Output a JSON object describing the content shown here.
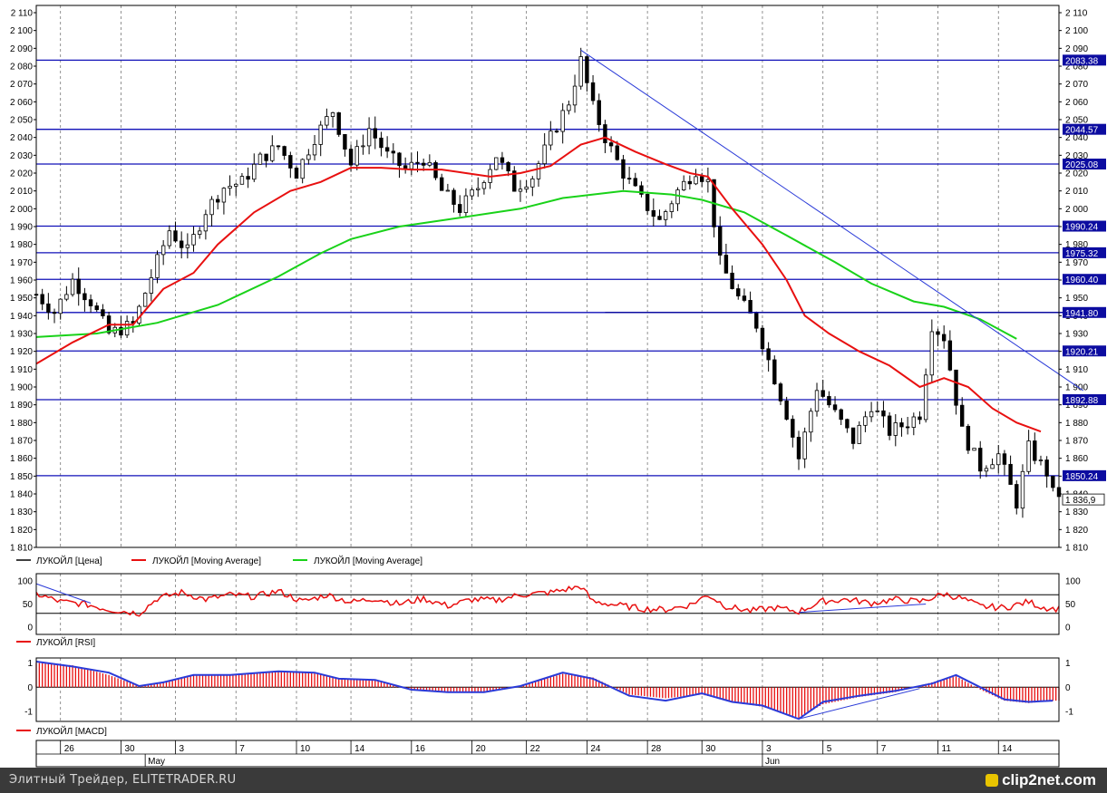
{
  "chart_data": [
    {
      "type": "candlestick",
      "series": [
        {
          "name": "ЛУКОЙЛ [Цена]",
          "color": "#000000"
        },
        {
          "name": "ЛУКОЙЛ [Moving Average]",
          "color": "#e81010"
        },
        {
          "name": "ЛУКОЙЛ [Moving Average]",
          "color": "#19d219"
        }
      ],
      "ylim": [
        1810,
        2110
      ],
      "y_ticks": [
        "2 110",
        "2 100",
        "2 090",
        "2 080",
        "2 070",
        "2 060",
        "2 050",
        "2 040",
        "2 030",
        "2 020",
        "2 010",
        "2 000",
        "1 990",
        "1 980",
        "1 970",
        "1 960",
        "1 950",
        "1 940",
        "1 930",
        "1 920",
        "1 910",
        "1 900",
        "1 890",
        "1 880",
        "1 870",
        "1 860",
        "1 850",
        "1 840",
        "1 830",
        "1 820",
        "1 810"
      ],
      "levels": [
        {
          "value": 2083.38,
          "label": "2083.38"
        },
        {
          "value": 2044.57,
          "label": "2044.57"
        },
        {
          "value": 2025.08,
          "label": "2025.08"
        },
        {
          "value": 1990.24,
          "label": "1990.24"
        },
        {
          "value": 1975.32,
          "label": "1975.32"
        },
        {
          "value": 1960.4,
          "label": "1960.40"
        },
        {
          "value": 1941.8,
          "label": "1941.80"
        },
        {
          "value": 1920.21,
          "label": "1920.21"
        },
        {
          "value": 1892.88,
          "label": "1892.88"
        },
        {
          "value": 1850.24,
          "label": "1850.24"
        }
      ],
      "last_price": {
        "value": 1836.9,
        "label": "1 836,9"
      },
      "price_path": [
        [
          0,
          1952
        ],
        [
          3,
          1942
        ],
        [
          6,
          1960
        ],
        [
          9,
          1948
        ],
        [
          12,
          1930
        ],
        [
          16,
          1935
        ],
        [
          19,
          1962
        ],
        [
          22,
          1988
        ],
        [
          25,
          1976
        ],
        [
          28,
          1999
        ],
        [
          31,
          2012
        ],
        [
          34,
          2015
        ],
        [
          37,
          2028
        ],
        [
          40,
          2035
        ],
        [
          43,
          2020
        ],
        [
          46,
          2040
        ],
        [
          49,
          2055
        ],
        [
          52,
          2025
        ],
        [
          55,
          2045
        ],
        [
          58,
          2030
        ],
        [
          61,
          2022
        ],
        [
          64,
          2028
        ],
        [
          67,
          2010
        ],
        [
          70,
          2000
        ],
        [
          73,
          2012
        ],
        [
          76,
          2030
        ],
        [
          79,
          2012
        ],
        [
          82,
          2018
        ],
        [
          85,
          2040
        ],
        [
          88,
          2060
        ],
        [
          90,
          2083
        ],
        [
          92,
          2057
        ],
        [
          94,
          2040
        ],
        [
          97,
          2020
        ],
        [
          100,
          2005
        ],
        [
          103,
          1993
        ],
        [
          106,
          2010
        ],
        [
          109,
          2022
        ],
        [
          111,
          2015
        ],
        [
          113,
          1970
        ],
        [
          116,
          1950
        ],
        [
          119,
          1935
        ],
        [
          121,
          1915
        ],
        [
          124,
          1885
        ],
        [
          126,
          1860
        ],
        [
          129,
          1900
        ],
        [
          132,
          1885
        ],
        [
          135,
          1870
        ],
        [
          138,
          1890
        ],
        [
          141,
          1875
        ],
        [
          144,
          1880
        ],
        [
          146,
          1885
        ],
        [
          148,
          1935
        ],
        [
          150,
          1928
        ],
        [
          153,
          1875
        ],
        [
          156,
          1855
        ],
        [
          159,
          1862
        ],
        [
          162,
          1835
        ],
        [
          164,
          1866
        ],
        [
          167,
          1852
        ],
        [
          168,
          1840
        ]
      ],
      "ma_fast": [
        [
          0,
          1913
        ],
        [
          6,
          1925
        ],
        [
          12,
          1935
        ],
        [
          16,
          1935
        ],
        [
          21,
          1955
        ],
        [
          26,
          1964
        ],
        [
          30,
          1980
        ],
        [
          36,
          1998
        ],
        [
          42,
          2010
        ],
        [
          47,
          2015
        ],
        [
          52,
          2023
        ],
        [
          57,
          2023
        ],
        [
          62,
          2022
        ],
        [
          67,
          2022
        ],
        [
          71,
          2020
        ],
        [
          75,
          2018
        ],
        [
          80,
          2020
        ],
        [
          85,
          2024
        ],
        [
          90,
          2036
        ],
        [
          94,
          2040
        ],
        [
          99,
          2032
        ],
        [
          104,
          2025
        ],
        [
          108,
          2020
        ],
        [
          111,
          2018
        ],
        [
          115,
          2000
        ],
        [
          120,
          1980
        ],
        [
          124,
          1960
        ],
        [
          127,
          1940
        ],
        [
          131,
          1930
        ],
        [
          136,
          1920
        ],
        [
          141,
          1912
        ],
        [
          146,
          1900
        ],
        [
          150,
          1905
        ],
        [
          154,
          1900
        ],
        [
          158,
          1888
        ],
        [
          162,
          1880
        ],
        [
          166,
          1875
        ]
      ],
      "ma_slow": [
        [
          0,
          1928
        ],
        [
          10,
          1930
        ],
        [
          20,
          1936
        ],
        [
          30,
          1946
        ],
        [
          40,
          1962
        ],
        [
          47,
          1975
        ],
        [
          52,
          1983
        ],
        [
          60,
          1990
        ],
        [
          70,
          1995
        ],
        [
          80,
          2000
        ],
        [
          87,
          2006
        ],
        [
          92,
          2008
        ],
        [
          97,
          2010
        ],
        [
          105,
          2008
        ],
        [
          110,
          2005
        ],
        [
          117,
          1998
        ],
        [
          124,
          1985
        ],
        [
          132,
          1970
        ],
        [
          138,
          1958
        ],
        [
          145,
          1948
        ],
        [
          150,
          1945
        ],
        [
          156,
          1938
        ],
        [
          162,
          1927
        ]
      ],
      "trend_lines": [
        [
          [
            90,
            2089
          ],
          [
            173,
            1898
          ]
        ]
      ],
      "support_lines": [
        [
          [
            94,
            1941.8
          ],
          [
            170,
            1941.8
          ]
        ]
      ]
    },
    {
      "type": "line",
      "series": [
        {
          "name": "ЛУКОЙЛ [RSI]",
          "color": "#e81010"
        }
      ],
      "ylim": [
        0,
        100
      ],
      "y_ticks": [
        "100",
        "50",
        "0"
      ],
      "levels": [
        70,
        30
      ],
      "values": [
        [
          0,
          72
        ],
        [
          4,
          55
        ],
        [
          8,
          50
        ],
        [
          12,
          38
        ],
        [
          17,
          30
        ],
        [
          20,
          62
        ],
        [
          24,
          75
        ],
        [
          28,
          60
        ],
        [
          32,
          70
        ],
        [
          36,
          66
        ],
        [
          40,
          78
        ],
        [
          44,
          55
        ],
        [
          48,
          70
        ],
        [
          52,
          54
        ],
        [
          56,
          62
        ],
        [
          60,
          50
        ],
        [
          64,
          62
        ],
        [
          68,
          46
        ],
        [
          72,
          60
        ],
        [
          76,
          58
        ],
        [
          80,
          70
        ],
        [
          85,
          75
        ],
        [
          90,
          88
        ],
        [
          92,
          55
        ],
        [
          96,
          48
        ],
        [
          100,
          40
        ],
        [
          104,
          38
        ],
        [
          108,
          48
        ],
        [
          111,
          70
        ],
        [
          114,
          45
        ],
        [
          118,
          35
        ],
        [
          122,
          42
        ],
        [
          126,
          34
        ],
        [
          130,
          56
        ],
        [
          134,
          60
        ],
        [
          138,
          52
        ],
        [
          142,
          60
        ],
        [
          146,
          55
        ],
        [
          150,
          72
        ],
        [
          153,
          62
        ],
        [
          156,
          45
        ],
        [
          160,
          42
        ],
        [
          164,
          55
        ],
        [
          166,
          44
        ],
        [
          168,
          40
        ]
      ],
      "trend_lines": [
        [
          [
            0,
            94
          ],
          [
            9,
            52
          ]
        ],
        [
          [
            126,
            32
          ],
          [
            147,
            50
          ]
        ]
      ]
    },
    {
      "type": "bar",
      "series": [
        {
          "name": "ЛУКОЙЛ [MACD]",
          "color": "#e81010"
        }
      ],
      "ylim": [
        -1.4,
        1.2
      ],
      "y_ticks": [
        "1",
        "0",
        "-1"
      ],
      "histogram": [
        [
          0,
          1.0
        ],
        [
          6,
          0.9
        ],
        [
          12,
          0.5
        ],
        [
          17,
          0.05
        ],
        [
          21,
          0.2
        ],
        [
          26,
          0.5
        ],
        [
          32,
          0.5
        ],
        [
          40,
          0.65
        ],
        [
          46,
          0.6
        ],
        [
          50,
          0.35
        ],
        [
          56,
          0.3
        ],
        [
          62,
          -0.1
        ],
        [
          68,
          -0.2
        ],
        [
          74,
          -0.2
        ],
        [
          80,
          0.05
        ],
        [
          87,
          0.55
        ],
        [
          92,
          0.4
        ],
        [
          98,
          -0.3
        ],
        [
          104,
          -0.45
        ],
        [
          110,
          -0.3
        ],
        [
          115,
          -0.6
        ],
        [
          120,
          -0.8
        ],
        [
          126,
          -1.25
        ],
        [
          130,
          -0.7
        ],
        [
          136,
          -0.4
        ],
        [
          142,
          -0.2
        ],
        [
          148,
          0.2
        ],
        [
          152,
          0.45
        ],
        [
          156,
          -0.1
        ],
        [
          160,
          -0.55
        ],
        [
          164,
          -0.65
        ],
        [
          168,
          -0.55
        ]
      ],
      "signal": [
        [
          0,
          1.05
        ],
        [
          6,
          0.85
        ],
        [
          12,
          0.6
        ],
        [
          17,
          0.05
        ],
        [
          21,
          0.2
        ],
        [
          26,
          0.5
        ],
        [
          32,
          0.5
        ],
        [
          40,
          0.65
        ],
        [
          46,
          0.6
        ],
        [
          50,
          0.35
        ],
        [
          56,
          0.3
        ],
        [
          62,
          -0.1
        ],
        [
          68,
          -0.2
        ],
        [
          74,
          -0.2
        ],
        [
          80,
          0.05
        ],
        [
          87,
          0.6
        ],
        [
          92,
          0.35
        ],
        [
          98,
          -0.35
        ],
        [
          104,
          -0.55
        ],
        [
          110,
          -0.25
        ],
        [
          115,
          -0.6
        ],
        [
          120,
          -0.75
        ],
        [
          126,
          -1.3
        ],
        [
          130,
          -0.6
        ],
        [
          136,
          -0.35
        ],
        [
          142,
          -0.15
        ],
        [
          148,
          0.15
        ],
        [
          152,
          0.5
        ],
        [
          156,
          0.0
        ],
        [
          160,
          -0.5
        ],
        [
          164,
          -0.6
        ],
        [
          168,
          -0.55
        ]
      ],
      "trend_lines": [
        [
          [
            126,
            -1.3
          ],
          [
            146,
            -0.05
          ]
        ]
      ]
    }
  ],
  "x_axis": {
    "ticks": [
      {
        "label": "26",
        "x": 4
      },
      {
        "label": "30",
        "x": 14
      },
      {
        "label": "3",
        "x": 23
      },
      {
        "label": "7",
        "x": 33
      },
      {
        "label": "10",
        "x": 43
      },
      {
        "label": "14",
        "x": 52
      },
      {
        "label": "16",
        "x": 62
      },
      {
        "label": "20",
        "x": 72
      },
      {
        "label": "22",
        "x": 81
      },
      {
        "label": "24",
        "x": 91
      },
      {
        "label": "28",
        "x": 101
      },
      {
        "label": "30",
        "x": 110
      },
      {
        "label": "3",
        "x": 120
      },
      {
        "label": "5",
        "x": 130
      },
      {
        "label": "7",
        "x": 139
      },
      {
        "label": "11",
        "x": 149
      },
      {
        "label": "14",
        "x": 159
      }
    ],
    "months": [
      {
        "label": "May",
        "x": 18
      },
      {
        "label": "Jun",
        "x": 120
      }
    ],
    "x_max": 169
  },
  "footer": {
    "source": "Элитный Трейдер, ELITETRADER.RU",
    "logo": "clip2net.com"
  }
}
